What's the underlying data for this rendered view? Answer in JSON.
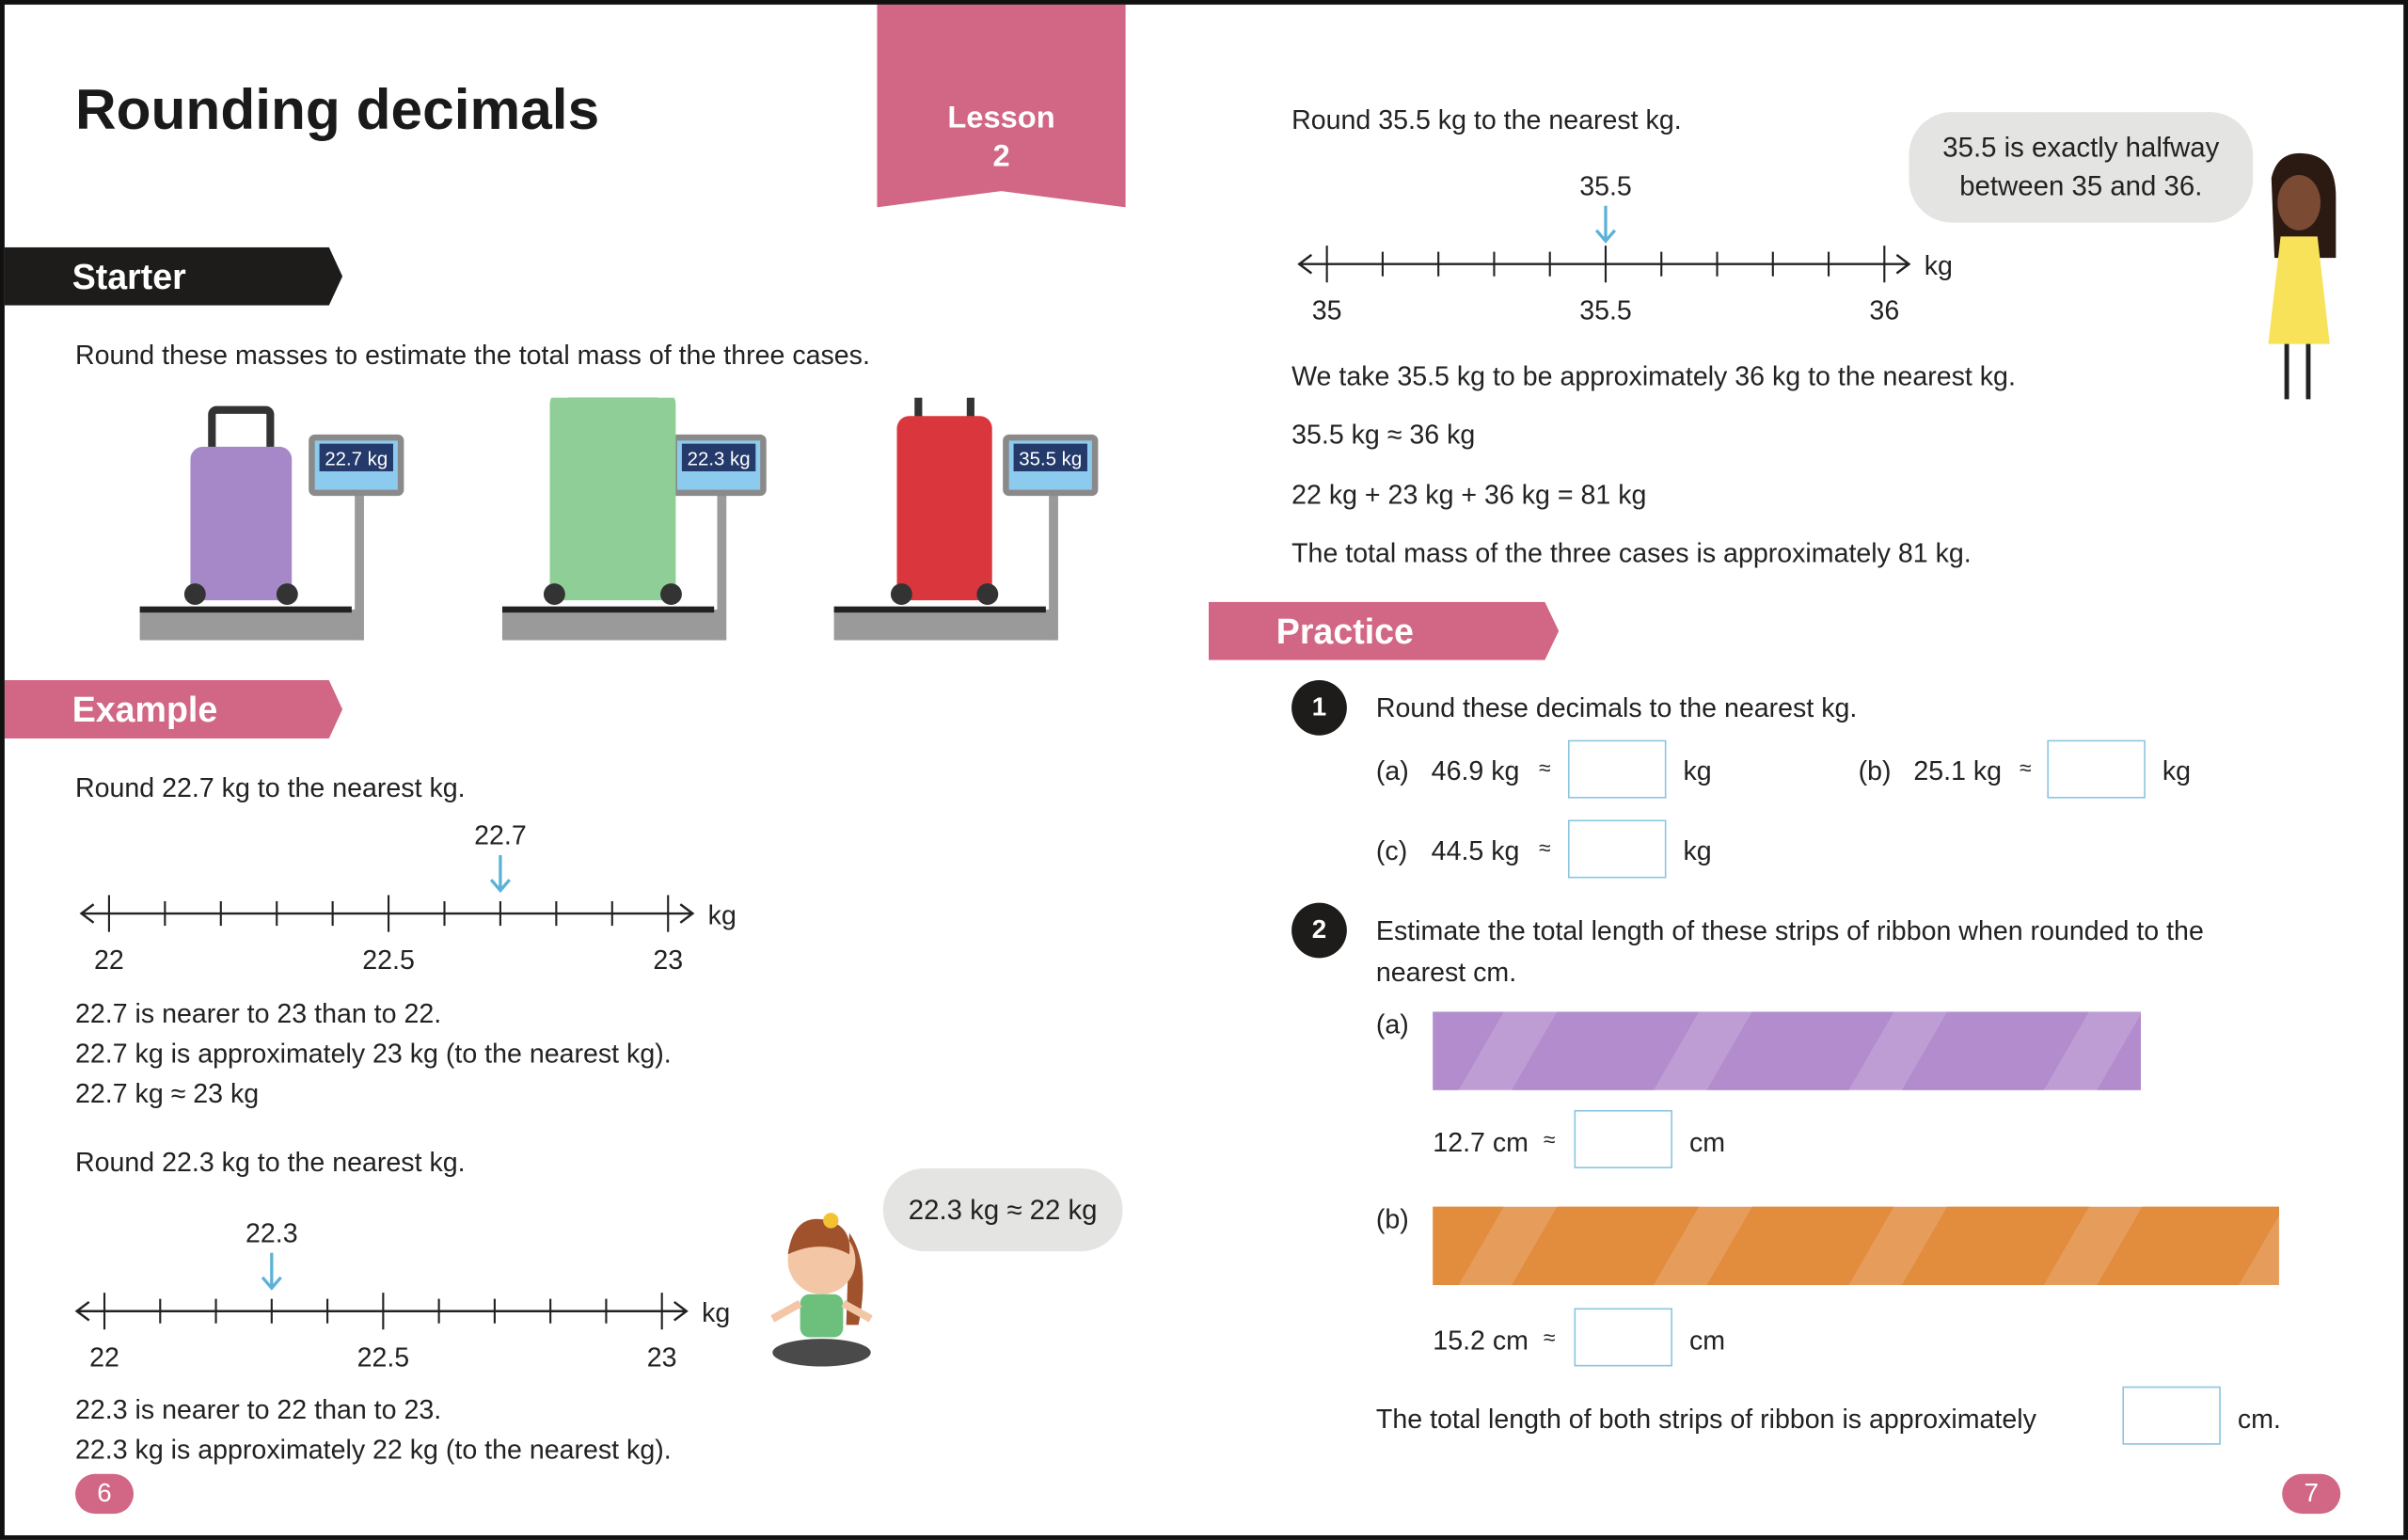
{
  "header": {
    "title": "Rounding decimals",
    "lesson_label": "Lesson",
    "lesson_number": "2"
  },
  "starter": {
    "heading": "Starter",
    "instruction": "Round these masses to estimate the total mass of the three cases.",
    "cases": [
      {
        "reading": "22.7 kg",
        "color": "#a688c8"
      },
      {
        "reading": "22.3 kg",
        "color": "#8fcf97"
      },
      {
        "reading": "35.5 kg",
        "color": "#d9373d"
      }
    ]
  },
  "example": {
    "heading": "Example",
    "q1": "Round 22.7 kg to the nearest kg.",
    "line1": {
      "min": 22,
      "max": 23,
      "step": 0.1,
      "labels": [
        "22",
        "22.5",
        "23"
      ],
      "unit": "kg",
      "marker": 22.7,
      "marker_label": "22.7"
    },
    "l1": "22.7 is nearer to 23 than to 22.",
    "l2": "22.7 kg is approximately 23 kg (to the nearest kg).",
    "l3": "22.7 kg ≈ 23 kg",
    "q2": "Round 22.3 kg to the nearest kg.",
    "line2": {
      "min": 22,
      "max": 23,
      "step": 0.1,
      "labels": [
        "22",
        "22.5",
        "23"
      ],
      "unit": "kg",
      "marker": 22.3,
      "marker_label": "22.3"
    },
    "bubble": "22.3 kg ≈ 22 kg",
    "l4": "22.3 is nearer to 22 than to 23.",
    "l5": "22.3 kg is approximately 22 kg (to the nearest kg)."
  },
  "right": {
    "q3": "Round 35.5 kg to the nearest kg.",
    "line3": {
      "min": 35,
      "max": 36,
      "step": 0.1,
      "labels": [
        "35",
        "35.5",
        "36"
      ],
      "unit": "kg",
      "marker": 35.5,
      "marker_label": "35.5"
    },
    "bubble": "35.5 is exactly halfway between 35 and 36.",
    "l1": "We take 35.5 kg to be approximately 36 kg to the nearest kg.",
    "l2": "35.5 kg ≈ 36 kg",
    "l3": "22 kg + 23 kg + 36 kg = 81 kg",
    "l4": "The total mass of the three cases is approximately 81 kg."
  },
  "practice": {
    "heading": "Practice",
    "q1": {
      "number": "1",
      "text": "Round these decimals to the nearest kg.",
      "items": [
        {
          "label": "(a)",
          "value": "46.9 kg",
          "approx": "≈",
          "unit": "kg"
        },
        {
          "label": "(b)",
          "value": "25.1 kg",
          "approx": "≈",
          "unit": "kg"
        },
        {
          "label": "(c)",
          "value": "44.5 kg",
          "approx": "≈",
          "unit": "kg"
        }
      ]
    },
    "q2": {
      "number": "2",
      "text1": "Estimate the total length of these strips of ribbon when rounded to the",
      "text2": "nearest cm.",
      "ribbons": [
        {
          "label": "(a)",
          "value": "12.7 cm",
          "approx": "≈",
          "unit": "cm",
          "color": "#b28ccc"
        },
        {
          "label": "(b)",
          "value": "15.2 cm",
          "approx": "≈",
          "unit": "cm",
          "color": "#e28c3e"
        }
      ],
      "total_text": "The total length of both strips of ribbon is approximately",
      "total_unit": "cm."
    }
  },
  "footer": {
    "left_page": "6",
    "right_page": "7"
  },
  "colors": {
    "pink": "#d26685",
    "dark": "#1e1c1a",
    "box": "#8cc6e0",
    "arrow": "#5ab2d8"
  }
}
